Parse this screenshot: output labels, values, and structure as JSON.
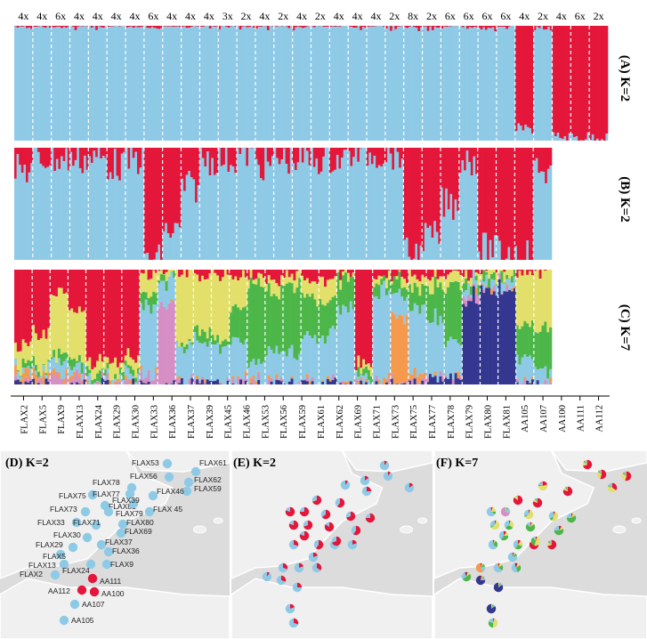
{
  "colors": {
    "blue": "#8ecae6",
    "red": "#e4163a",
    "yellow": "#e2e06a",
    "green": "#4cb748",
    "orange": "#f59a4c",
    "pink": "#d68fc4",
    "navy": "#34378f",
    "land": "#f0f0f0",
    "sea": "#dcdcdc",
    "coast": "#ffffff"
  },
  "chart_data": [
    {
      "type": "structure-barplot",
      "panel_label": "(A) K=2",
      "k": 2,
      "ploidy": [
        "4x",
        "4x",
        "6x",
        "4x",
        "4x",
        "4x",
        "4x",
        "6x",
        "4x",
        "4x",
        "4x",
        "3x",
        "2x",
        "4x",
        "2x",
        "4x",
        "2x",
        "4x",
        "4x",
        "4x",
        "2x",
        "8x",
        "2x",
        "6x",
        "6x",
        "6x",
        "6x",
        "4x",
        "2x",
        "4x",
        "6x",
        "2x"
      ],
      "clusters": [
        "blue",
        "red"
      ],
      "red_fraction_per_group": [
        0.03,
        0.02,
        0.02,
        0.01,
        0.02,
        0.01,
        0.02,
        0.02,
        0.01,
        0.02,
        0.01,
        0.01,
        0.02,
        0.01,
        0.01,
        0.02,
        0.01,
        0.01,
        0.02,
        0.01,
        0.03,
        0.02,
        0.02,
        0.01,
        0.02,
        0.02,
        0.01,
        0.9,
        0.05,
        0.97,
        0.97,
        0.97
      ]
    },
    {
      "type": "structure-barplot",
      "panel_label": "(B) K=2",
      "k": 2,
      "clusters": [
        "blue",
        "red"
      ],
      "red_fraction_per_group": [
        0.2,
        0.1,
        0.1,
        0.1,
        0.1,
        0.15,
        0.1,
        1.0,
        0.75,
        0.35,
        0.1,
        0.1,
        0.05,
        0.15,
        0.1,
        0.1,
        0.1,
        0.1,
        0.05,
        0.05,
        0.05,
        0.95,
        0.8,
        0.5,
        0.1,
        0.9,
        0.93,
        0.95,
        0.2
      ]
    },
    {
      "type": "structure-barplot",
      "panel_label": "(C) K=7",
      "k": 7,
      "clusters": [
        "red",
        "yellow",
        "green",
        "blue",
        "orange",
        "pink",
        "navy"
      ],
      "group_compositions": [
        [
          0.7,
          0.15,
          0.05,
          0.05,
          0.05,
          0,
          0
        ],
        [
          0.55,
          0.3,
          0.05,
          0.05,
          0.05,
          0,
          0
        ],
        [
          0.2,
          0.55,
          0.05,
          0.1,
          0.05,
          0.05,
          0
        ],
        [
          0.35,
          0.45,
          0.05,
          0.1,
          0,
          0.05,
          0
        ],
        [
          0.8,
          0.1,
          0.05,
          0.05,
          0,
          0,
          0
        ],
        [
          0.85,
          0.1,
          0.02,
          0.03,
          0,
          0,
          0
        ],
        [
          0.8,
          0.1,
          0.05,
          0.05,
          0,
          0,
          0
        ],
        [
          0.05,
          0.2,
          0.1,
          0.6,
          0,
          0.05,
          0
        ],
        [
          0,
          0.05,
          0.05,
          0.2,
          0,
          0.7,
          0
        ],
        [
          0.05,
          0.6,
          0.05,
          0.3,
          0,
          0,
          0
        ],
        [
          0.05,
          0.5,
          0.1,
          0.35,
          0,
          0,
          0
        ],
        [
          0.05,
          0.6,
          0.05,
          0.3,
          0,
          0,
          0
        ],
        [
          0.05,
          0.3,
          0.3,
          0.35,
          0,
          0,
          0
        ],
        [
          0.05,
          0.1,
          0.7,
          0.15,
          0,
          0,
          0
        ],
        [
          0.1,
          0.1,
          0.55,
          0.25,
          0,
          0,
          0
        ],
        [
          0.05,
          0.1,
          0.6,
          0.25,
          0,
          0,
          0
        ],
        [
          0.1,
          0.15,
          0.35,
          0.4,
          0,
          0,
          0
        ],
        [
          0.1,
          0.2,
          0.3,
          0.4,
          0,
          0,
          0
        ],
        [
          0.05,
          0.05,
          0.25,
          0.65,
          0,
          0,
          0
        ],
        [
          0.85,
          0.05,
          0.05,
          0.05,
          0,
          0,
          0
        ],
        [
          0.05,
          0.05,
          0.1,
          0.8,
          0,
          0,
          0
        ],
        [
          0.05,
          0.05,
          0.1,
          0.2,
          0.6,
          0,
          0
        ],
        [
          0.05,
          0.1,
          0.2,
          0.6,
          0.05,
          0,
          0
        ],
        [
          0.05,
          0.1,
          0.3,
          0.5,
          0,
          0,
          0.05
        ],
        [
          0.05,
          0.1,
          0.5,
          0.3,
          0,
          0,
          0.05
        ],
        [
          0.05,
          0.05,
          0.05,
          0.05,
          0,
          0.05,
          0.75
        ],
        [
          0,
          0.05,
          0.05,
          0.05,
          0,
          0,
          0.85
        ],
        [
          0,
          0.05,
          0.05,
          0.05,
          0,
          0,
          0.85
        ],
        [
          0.05,
          0.45,
          0.3,
          0.2,
          0,
          0,
          0
        ],
        [
          0.05,
          0.5,
          0.35,
          0.1,
          0,
          0,
          0
        ]
      ]
    }
  ],
  "populations": [
    "FLAX2",
    "FLAX5",
    "FLAX9",
    "FLAX13",
    "FLAX24",
    "FLAX29",
    "FLAX30",
    "FLAX33",
    "FLAX36",
    "FLAX37",
    "FLAX39",
    "FLAX45",
    "FLAX46",
    "FLAX53",
    "FLAX56",
    "FLAX59",
    "FLAX61",
    "FLAX62",
    "FLAX69",
    "FLAX71",
    "FLAX73",
    "FLAX75",
    "FLAX77",
    "FLAX78",
    "FLAX79",
    "FLAX80",
    "FLAX81",
    "AA105",
    "AA107",
    "AA100",
    "AA111",
    "AA112"
  ],
  "maps": {
    "d": {
      "title": "(D) K=2",
      "labels": [
        "FLAX53",
        "FLAX61",
        "FLAX56",
        "FLAX62",
        "FLAX78",
        "FLAX59",
        "FLAX75",
        "FLAX77",
        "FLAX46",
        "FLAX81",
        "FLAX39",
        "FLAX73",
        "FLAX79",
        "FLAX 45",
        "FLAX33",
        "FLAX71",
        "FLAX80",
        "FLAX69",
        "FLAX30",
        "FLAX29",
        "FLAX37",
        "FLAX36",
        "FLAX5",
        "FLAX13",
        "FLAX24",
        "FLAX9",
        "FLAX2",
        "AA111",
        "AA112",
        "AA100",
        "AA107",
        "AA105"
      ],
      "red_share": [
        0.05,
        0.05,
        0.05,
        0.05,
        0.05,
        0.05,
        0.05,
        0.05,
        0.05,
        0.05,
        0.05,
        0.05,
        0.05,
        0.05,
        0.05,
        0.05,
        0.05,
        0.05,
        0.05,
        0.05,
        0.05,
        0.05,
        0.05,
        0.05,
        0.05,
        0.05,
        0.05,
        0.97,
        0.95,
        0.95,
        0.1,
        0.05
      ]
    },
    "e": {
      "title": "(E) K=2",
      "red_share": [
        0.1,
        0.1,
        0.1,
        0.15,
        0.25,
        0.7,
        0.6,
        0.8,
        0.75,
        0.65,
        0.7,
        0.8,
        0.7,
        0.85,
        0.6,
        0.75,
        0.8,
        0.6,
        0.3,
        0.25,
        0.2,
        0.3,
        0.2,
        0.35,
        0.1,
        0.3,
        0.25,
        0.2,
        0.3,
        0.7,
        0.2,
        0.15
      ]
    },
    "f": {
      "title": "(F) K=7"
    }
  }
}
